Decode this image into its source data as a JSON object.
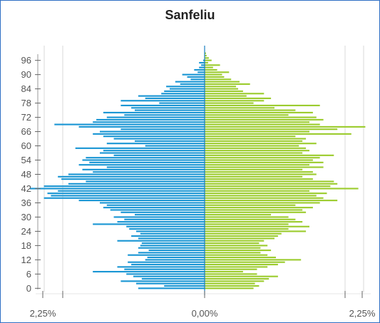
{
  "chart_data": {
    "type": "bar",
    "title": "Sanfeliu",
    "orientation": "horizontal-population-pyramid",
    "y_tick_labels": [
      "0",
      "6",
      "12",
      "18",
      "24",
      "30",
      "36",
      "42",
      "48",
      "54",
      "60",
      "66",
      "72",
      "78",
      "84",
      "90",
      "96"
    ],
    "x_tick_labels": [
      "2,25%",
      "0,00%",
      "2,25%"
    ],
    "xlim": [
      -2.25,
      2.25
    ],
    "ages": [
      0,
      1,
      2,
      3,
      4,
      5,
      6,
      7,
      8,
      9,
      10,
      11,
      12,
      13,
      14,
      15,
      16,
      17,
      18,
      19,
      20,
      21,
      22,
      23,
      24,
      25,
      26,
      27,
      28,
      29,
      30,
      31,
      32,
      33,
      34,
      35,
      36,
      37,
      38,
      39,
      40,
      41,
      42,
      43,
      44,
      45,
      46,
      47,
      48,
      49,
      50,
      51,
      52,
      53,
      54,
      55,
      56,
      57,
      58,
      59,
      60,
      61,
      62,
      63,
      64,
      65,
      66,
      67,
      68,
      69,
      70,
      71,
      72,
      73,
      74,
      75,
      76,
      77,
      78,
      79,
      80,
      81,
      82,
      83,
      84,
      85,
      86,
      87,
      88,
      89,
      90,
      91,
      92,
      93,
      94,
      95,
      96,
      97,
      98,
      99,
      100
    ],
    "series": [
      {
        "color": "#1a96d4",
        "side": "left",
        "values": [
          0.95,
          0.58,
          0.98,
          1.2,
          0.9,
          1.02,
          1.12,
          1.6,
          1.15,
          1.25,
          1.05,
          1.1,
          0.85,
          0.82,
          1.1,
          0.95,
          0.8,
          0.95,
          0.92,
          0.9,
          1.25,
          0.95,
          1.05,
          0.92,
          0.98,
          1.08,
          1.12,
          1.6,
          1.25,
          1.15,
          1.3,
          1.0,
          1.2,
          1.35,
          1.45,
          1.4,
          1.5,
          1.8,
          2.3,
          2.2,
          2.25,
          2.1,
          2.5,
          2.3,
          1.95,
          1.7,
          2.05,
          2.1,
          1.95,
          1.6,
          1.75,
          1.4,
          1.8,
          1.65,
          1.75,
          1.7,
          1.3,
          1.5,
          1.45,
          1.85,
          0.85,
          1.4,
          1.0,
          1.3,
          1.45,
          1.6,
          1.5,
          1.2,
          1.8,
          2.15,
          1.6,
          1.55,
          1.4,
          1.15,
          1.45,
          1.0,
          1.05,
          1.2,
          0.65,
          1.2,
          0.85,
          0.95,
          0.62,
          0.58,
          0.5,
          0.55,
          0.35,
          0.42,
          0.2,
          0.25,
          0.32,
          0.1,
          0.15,
          0.08,
          0.05,
          0.08,
          0.02,
          0.0,
          0.0,
          0.0,
          0.0
        ]
      },
      {
        "color": "#9ccc2e",
        "side": "right",
        "values": [
          0.7,
          0.78,
          0.72,
          0.85,
          0.92,
          1.05,
          0.75,
          0.55,
          0.75,
          0.9,
          1.05,
          1.15,
          1.38,
          1.02,
          0.9,
          0.8,
          0.95,
          0.8,
          0.9,
          0.78,
          0.85,
          1.0,
          1.05,
          1.1,
          1.45,
          1.2,
          1.5,
          1.2,
          1.4,
          1.3,
          1.2,
          0.95,
          1.45,
          1.4,
          1.55,
          1.3,
          1.65,
          1.9,
          1.7,
          1.6,
          1.75,
          1.5,
          2.2,
          1.8,
          1.9,
          1.85,
          1.55,
          1.4,
          1.6,
          1.55,
          1.4,
          1.7,
          1.5,
          1.7,
          1.55,
          1.65,
          1.85,
          1.4,
          1.5,
          1.45,
          1.35,
          1.6,
          1.4,
          1.45,
          1.3,
          2.1,
          1.5,
          1.9,
          2.3,
          1.65,
          1.5,
          1.7,
          1.6,
          1.2,
          1.55,
          1.3,
          1.0,
          1.65,
          0.7,
          0.85,
          0.95,
          0.6,
          0.85,
          0.55,
          0.48,
          0.45,
          0.65,
          0.5,
          0.38,
          0.28,
          0.25,
          0.35,
          0.18,
          0.12,
          0.22,
          0.05,
          0.1,
          0.06,
          0.03,
          0.02,
          0.0
        ]
      }
    ]
  }
}
